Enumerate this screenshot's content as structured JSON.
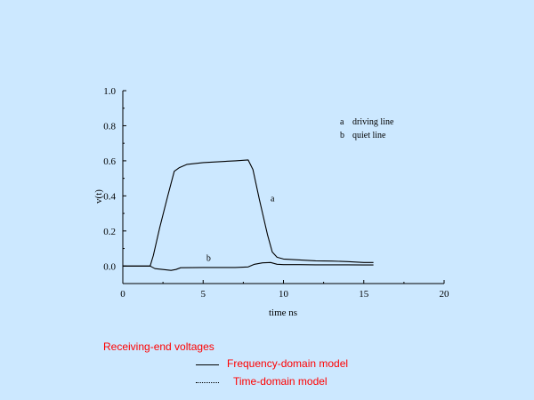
{
  "chart_data": {
    "type": "line",
    "xlabel": "time  ns",
    "ylabel": "v(t)",
    "xlim": [
      0,
      20
    ],
    "ylim": [
      -0.1,
      1.0
    ],
    "xticks": [
      "0",
      "5",
      "10",
      "15",
      "20"
    ],
    "yticks": [
      "0.0",
      "0.2",
      "0.4",
      "0.6",
      "0.8",
      "1.0"
    ],
    "xtick_values": [
      0,
      5,
      10,
      15,
      20
    ],
    "ytick_values": [
      0.0,
      0.2,
      0.4,
      0.6,
      0.8,
      1.0
    ],
    "grid": false,
    "series": [
      {
        "name": "a",
        "x": [
          0,
          1.7,
          1.9,
          2.3,
          2.8,
          3.2,
          3.5,
          4.0,
          5.0,
          6.0,
          7.0,
          7.8,
          8.1,
          8.5,
          9.0,
          9.3,
          9.6,
          10.0,
          11.0,
          12.0,
          13.0,
          14.0,
          15.0,
          15.6
        ],
        "values": [
          0.0,
          0.0,
          0.06,
          0.22,
          0.4,
          0.54,
          0.56,
          0.58,
          0.59,
          0.595,
          0.6,
          0.605,
          0.55,
          0.38,
          0.18,
          0.08,
          0.05,
          0.04,
          0.035,
          0.03,
          0.028,
          0.025,
          0.02,
          0.02
        ]
      },
      {
        "name": "b",
        "x": [
          0,
          1.7,
          2.0,
          3.0,
          3.3,
          3.6,
          5.0,
          6.0,
          7.0,
          7.8,
          8.2,
          8.7,
          9.2,
          9.6,
          10.0,
          11.0,
          12.0,
          13.0,
          14.0,
          15.0,
          15.6
        ],
        "values": [
          0.0,
          0.0,
          -0.015,
          -0.025,
          -0.02,
          -0.01,
          -0.008,
          -0.008,
          -0.008,
          -0.005,
          0.01,
          0.018,
          0.02,
          0.01,
          0.008,
          0.008,
          0.007,
          0.007,
          0.007,
          0.006,
          0.006
        ]
      }
    ],
    "annotations": [
      {
        "text": "a",
        "x": 9.2,
        "y": 0.37
      },
      {
        "text": "b",
        "x": 5.2,
        "y": 0.03
      }
    ],
    "legend": [
      {
        "marker": "a",
        "label": "driving line"
      },
      {
        "marker": "b",
        "label": "quiet line"
      }
    ]
  },
  "caption": {
    "title": "Receiving-end voltages",
    "items": [
      {
        "label": "Frequency-domain model",
        "style": "solid"
      },
      {
        "label": "Time-domain model",
        "style": "dotted"
      }
    ]
  },
  "colors": {
    "background": "#cce8ff",
    "caption_text": "#ff0000",
    "line": "#000000"
  }
}
